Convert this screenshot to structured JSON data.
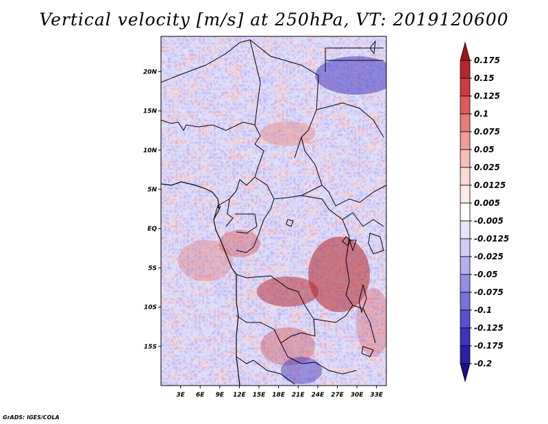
{
  "title": "Vertical velocity [m/s] at 250hPa, VT: 2019120600",
  "credit": "GrADS: IGES/COLA",
  "map": {
    "lat_range": [
      -20,
      24.5
    ],
    "lon_range": [
      0,
      34.5
    ],
    "lat_ticks": [
      {
        "value": 20,
        "label": "20N"
      },
      {
        "value": 15,
        "label": "15N"
      },
      {
        "value": 10,
        "label": "10N"
      },
      {
        "value": 5,
        "label": "5N"
      },
      {
        "value": 0,
        "label": "EQ"
      },
      {
        "value": -5,
        "label": "5S"
      },
      {
        "value": -10,
        "label": "10S"
      },
      {
        "value": -15,
        "label": "15S"
      }
    ],
    "lon_ticks": [
      {
        "value": 3,
        "label": "3E"
      },
      {
        "value": 6,
        "label": "6E"
      },
      {
        "value": 9,
        "label": "9E"
      },
      {
        "value": 12,
        "label": "12E"
      },
      {
        "value": 15,
        "label": "15E"
      },
      {
        "value": 18,
        "label": "18E"
      },
      {
        "value": 21,
        "label": "21E"
      },
      {
        "value": 24,
        "label": "24E"
      },
      {
        "value": 27,
        "label": "27E"
      },
      {
        "value": 30,
        "label": "30E"
      },
      {
        "value": 33,
        "label": "33E"
      }
    ]
  },
  "colorbar": {
    "labels": [
      "0.175",
      "0.15",
      "0.125",
      "0.1",
      "0.075",
      "0.05",
      "0.025",
      "0.0125",
      "0.005",
      "-0.005",
      "-0.0125",
      "-0.025",
      "-0.05",
      "-0.075",
      "-0.1",
      "-0.125",
      "-0.175",
      "-0.2"
    ],
    "colors": [
      "#9e1518",
      "#b8262b",
      "#cf3b3e",
      "#e05a59",
      "#e87c78",
      "#f09d98",
      "#f6bdb8",
      "#fbd9d5",
      "#fde9e6",
      "#ffffff",
      "#e6e4fb",
      "#cfccf6",
      "#b3aef0",
      "#958ee6",
      "#7870dc",
      "#5a50cf",
      "#3d33bc",
      "#2a1fa6",
      "#1a0f8c"
    ]
  }
}
